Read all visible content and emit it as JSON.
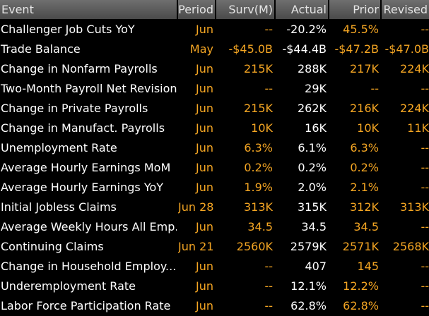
{
  "colors": {
    "background": "#000000",
    "header_bg": "#5a5a5a",
    "header_text": "#e4e4e4",
    "event_text": "#ffffff",
    "actual_text": "#ffffff",
    "accent_orange": "#f5a623"
  },
  "columns": [
    "Event",
    "Period",
    "Surv(M)",
    "Actual",
    "Prior",
    "Revised"
  ],
  "rows": [
    {
      "event": "Challenger Job Cuts YoY",
      "period": "Jun",
      "surv": "--",
      "actual": "-20.2%",
      "prior": "45.5%",
      "revised": "--"
    },
    {
      "event": "Trade Balance",
      "period": "May",
      "surv": "-$45.0B",
      "actual": "-$44.4B",
      "prior": "-$47.2B",
      "revised": "-$47.0B"
    },
    {
      "event": "Change in Nonfarm Payrolls",
      "period": "Jun",
      "surv": "215K",
      "actual": "288K",
      "prior": "217K",
      "revised": "224K"
    },
    {
      "event": "Two-Month Payroll Net Revision",
      "period": "Jun",
      "surv": "--",
      "actual": "29K",
      "prior": "--",
      "revised": "--"
    },
    {
      "event": "Change in Private Payrolls",
      "period": "Jun",
      "surv": "215K",
      "actual": "262K",
      "prior": "216K",
      "revised": "224K"
    },
    {
      "event": "Change in Manufact. Payrolls",
      "period": "Jun",
      "surv": "10K",
      "actual": "16K",
      "prior": "10K",
      "revised": "11K"
    },
    {
      "event": "Unemployment Rate",
      "period": "Jun",
      "surv": "6.3%",
      "actual": "6.1%",
      "prior": "6.3%",
      "revised": "--"
    },
    {
      "event": "Average Hourly Earnings MoM",
      "period": "Jun",
      "surv": "0.2%",
      "actual": "0.2%",
      "prior": "0.2%",
      "revised": "--"
    },
    {
      "event": "Average Hourly Earnings YoY",
      "period": "Jun",
      "surv": "1.9%",
      "actual": "2.0%",
      "prior": "2.1%",
      "revised": "--"
    },
    {
      "event": "Initial Jobless Claims",
      "period": "Jun 28",
      "surv": "313K",
      "actual": "315K",
      "prior": "312K",
      "revised": "313K"
    },
    {
      "event": "Average Weekly Hours All Emp...",
      "period": "Jun",
      "surv": "34.5",
      "actual": "34.5",
      "prior": "34.5",
      "revised": "--"
    },
    {
      "event": "Continuing Claims",
      "period": "Jun 21",
      "surv": "2560K",
      "actual": "2579K",
      "prior": "2571K",
      "revised": "2568K"
    },
    {
      "event": "Change in Household Employ...",
      "period": "Jun",
      "surv": "--",
      "actual": "407",
      "prior": "145",
      "revised": "--"
    },
    {
      "event": "Underemployment Rate",
      "period": "Jun",
      "surv": "--",
      "actual": "12.1%",
      "prior": "12.2%",
      "revised": "--"
    },
    {
      "event": "Labor Force Participation Rate",
      "period": "Jun",
      "surv": "--",
      "actual": "62.8%",
      "prior": "62.8%",
      "revised": "--"
    }
  ]
}
